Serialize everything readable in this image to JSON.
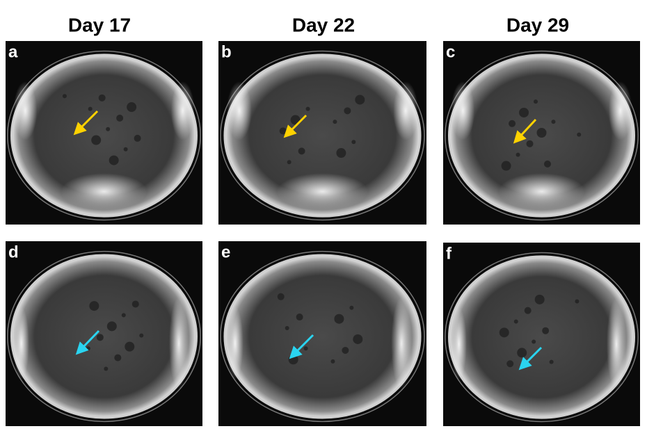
{
  "columns": [
    "Day 17",
    "Day 22",
    "Day 29"
  ],
  "panels": [
    {
      "label": "a"
    },
    {
      "label": "b"
    },
    {
      "label": "c"
    },
    {
      "label": "d"
    },
    {
      "label": "e"
    },
    {
      "label": "f"
    }
  ]
}
